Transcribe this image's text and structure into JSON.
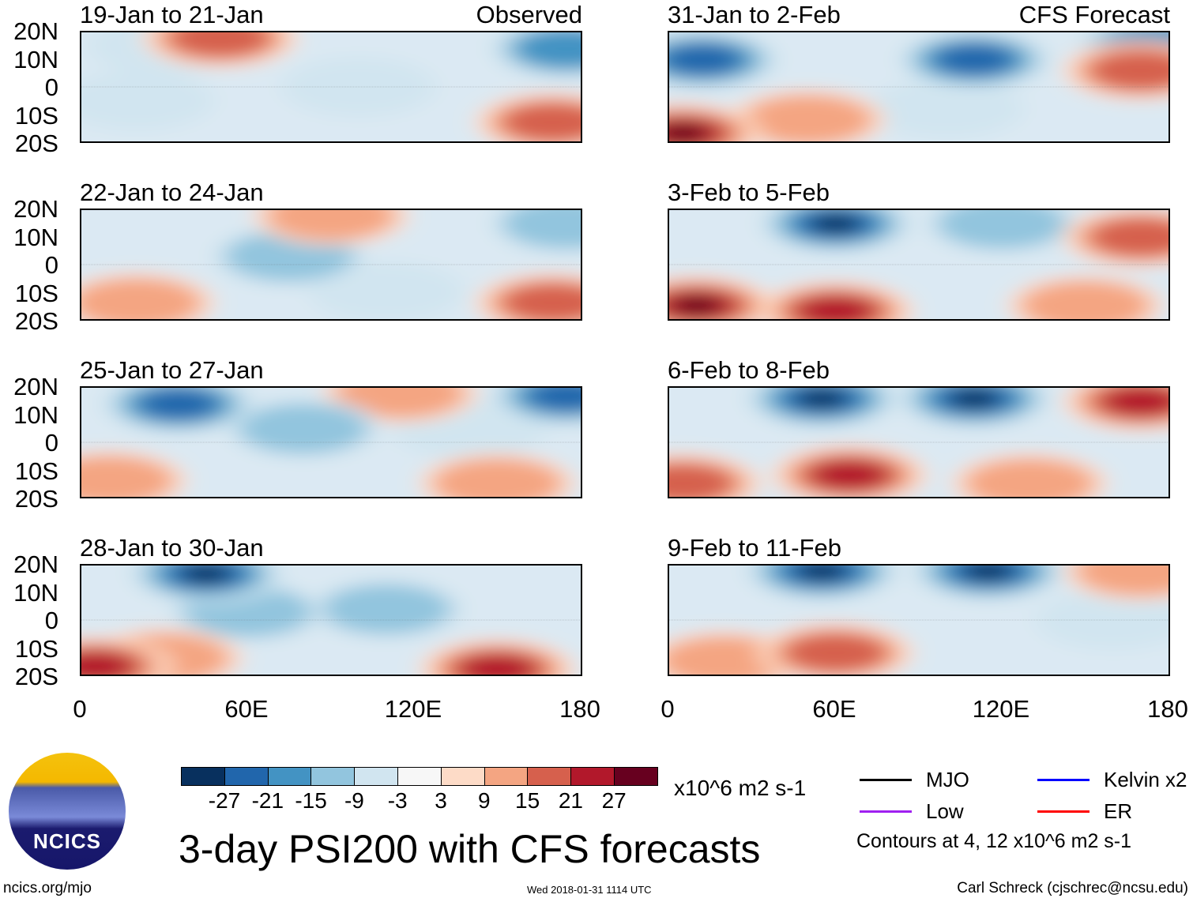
{
  "labels": {
    "observed": "Observed",
    "forecast": "CFS Forecast"
  },
  "lat_ticks": [
    "20N",
    "10N",
    "0",
    "10S",
    "20S"
  ],
  "lon_ticks": [
    "0",
    "60E",
    "120E",
    "180"
  ],
  "colorbar": {
    "colors": [
      "#08305e",
      "#2166ac",
      "#4393c3",
      "#92c5de",
      "#d1e5f0",
      "#f7f7f7",
      "#fddbc7",
      "#f4a582",
      "#d6604d",
      "#b2182b",
      "#67001f"
    ],
    "labels": [
      "-27",
      "-21",
      "-15",
      "-9",
      "-3",
      "3",
      "9",
      "15",
      "21",
      "27"
    ],
    "units": "x10^6 m2 s-1"
  },
  "title": "3-day PSI200 with CFS forecasts",
  "legend": {
    "items": [
      {
        "label": "MJO",
        "color": "#000000"
      },
      {
        "label": "Kelvin x2",
        "color": "#0000ff"
      },
      {
        "label": "Low",
        "color": "#a020f0"
      },
      {
        "label": "ER",
        "color": "#ff0000"
      }
    ],
    "note": "Contours at 4, 12 x10^6 m2 s-1"
  },
  "footer": {
    "left": "ncics.org/mjo",
    "center": "Wed 2018-01-31 1114 UTC",
    "right": "Carl Schreck (cjschrec@ncsu.edu)"
  },
  "logo_text": "NCICS",
  "chart_data": {
    "type": "heatmap",
    "variable": "200-hPa streamfunction anomaly",
    "xlim": [
      0,
      180
    ],
    "ylim": [
      -20,
      20
    ],
    "panels": [
      {
        "title": "19-Jan to 21-Jan",
        "anomalies": [
          [
            50,
            18,
            15
          ],
          [
            30,
            15,
            -3
          ],
          [
            100,
            0,
            -3
          ],
          [
            170,
            -13,
            15
          ],
          [
            175,
            14,
            -15
          ],
          [
            20,
            -5,
            -3
          ]
        ]
      },
      {
        "title": "22-Jan to 24-Jan",
        "anomalies": [
          [
            75,
            3,
            -9
          ],
          [
            170,
            -14,
            15
          ],
          [
            175,
            15,
            -9
          ],
          [
            20,
            -14,
            9
          ],
          [
            110,
            -10,
            -3
          ],
          [
            90,
            18,
            9
          ]
        ]
      },
      {
        "title": "25-Jan to 27-Jan",
        "anomalies": [
          [
            35,
            14,
            -21
          ],
          [
            175,
            17,
            -21
          ],
          [
            115,
            18,
            9
          ],
          [
            10,
            -14,
            9
          ],
          [
            150,
            -15,
            9
          ],
          [
            80,
            5,
            -9
          ],
          [
            140,
            5,
            -3
          ]
        ]
      },
      {
        "title": "28-Jan to 30-Jan",
        "anomalies": [
          [
            45,
            17,
            -27
          ],
          [
            150,
            -18,
            21
          ],
          [
            5,
            -17,
            21
          ],
          [
            110,
            4,
            -9
          ],
          [
            60,
            3,
            -9
          ],
          [
            30,
            -14,
            9
          ]
        ]
      },
      {
        "title": "31-Jan to 2-Feb",
        "anomalies": [
          [
            12,
            10,
            -21
          ],
          [
            110,
            10,
            -21
          ],
          [
            175,
            15,
            -15
          ],
          [
            5,
            -17,
            27
          ],
          [
            170,
            6,
            15
          ],
          [
            50,
            -12,
            9
          ],
          [
            100,
            -8,
            -3
          ]
        ]
      },
      {
        "title": "3-Feb to 5-Feb",
        "anomalies": [
          [
            60,
            15,
            -27
          ],
          [
            10,
            -15,
            27
          ],
          [
            60,
            -17,
            21
          ],
          [
            170,
            10,
            15
          ],
          [
            120,
            15,
            -9
          ],
          [
            150,
            -15,
            9
          ]
        ]
      },
      {
        "title": "6-Feb to 8-Feb",
        "anomalies": [
          [
            55,
            16,
            -27
          ],
          [
            110,
            16,
            -27
          ],
          [
            170,
            15,
            21
          ],
          [
            65,
            -12,
            21
          ],
          [
            5,
            -15,
            15
          ],
          [
            130,
            -15,
            9
          ]
        ]
      },
      {
        "title": "9-Feb to 11-Feb",
        "anomalies": [
          [
            55,
            18,
            -27
          ],
          [
            115,
            18,
            -27
          ],
          [
            60,
            -12,
            15
          ],
          [
            170,
            18,
            9
          ],
          [
            20,
            -15,
            9
          ],
          [
            160,
            0,
            -3
          ]
        ]
      }
    ]
  }
}
